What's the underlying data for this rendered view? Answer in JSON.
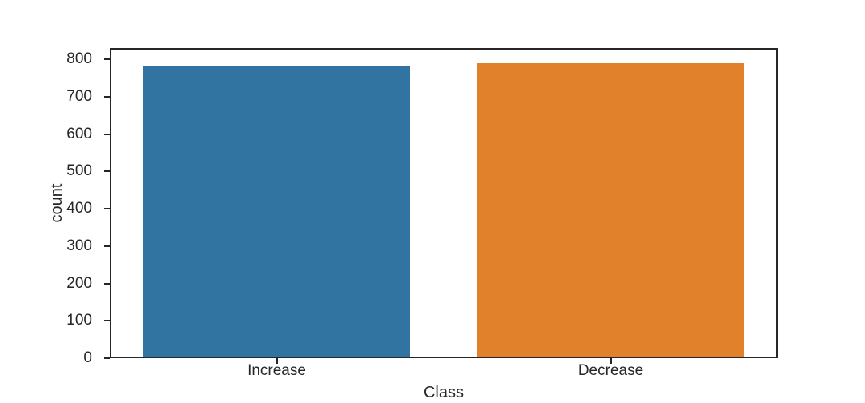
{
  "chart_data": {
    "type": "bar",
    "title": "",
    "categories": [
      "Increase",
      "Decrease"
    ],
    "values": [
      780,
      790
    ],
    "bar_colors": [
      "#3274a1",
      "#e1812c"
    ],
    "xlabel": "Class",
    "ylabel": "count",
    "ylim": [
      0,
      830
    ],
    "yticks": [
      0,
      100,
      200,
      300,
      400,
      500,
      600,
      700,
      800
    ],
    "bar_relative_width": 0.8,
    "grid": false,
    "legend": false,
    "axis_color": "#262626",
    "text_color": "#262626",
    "background": "#ffffff"
  }
}
